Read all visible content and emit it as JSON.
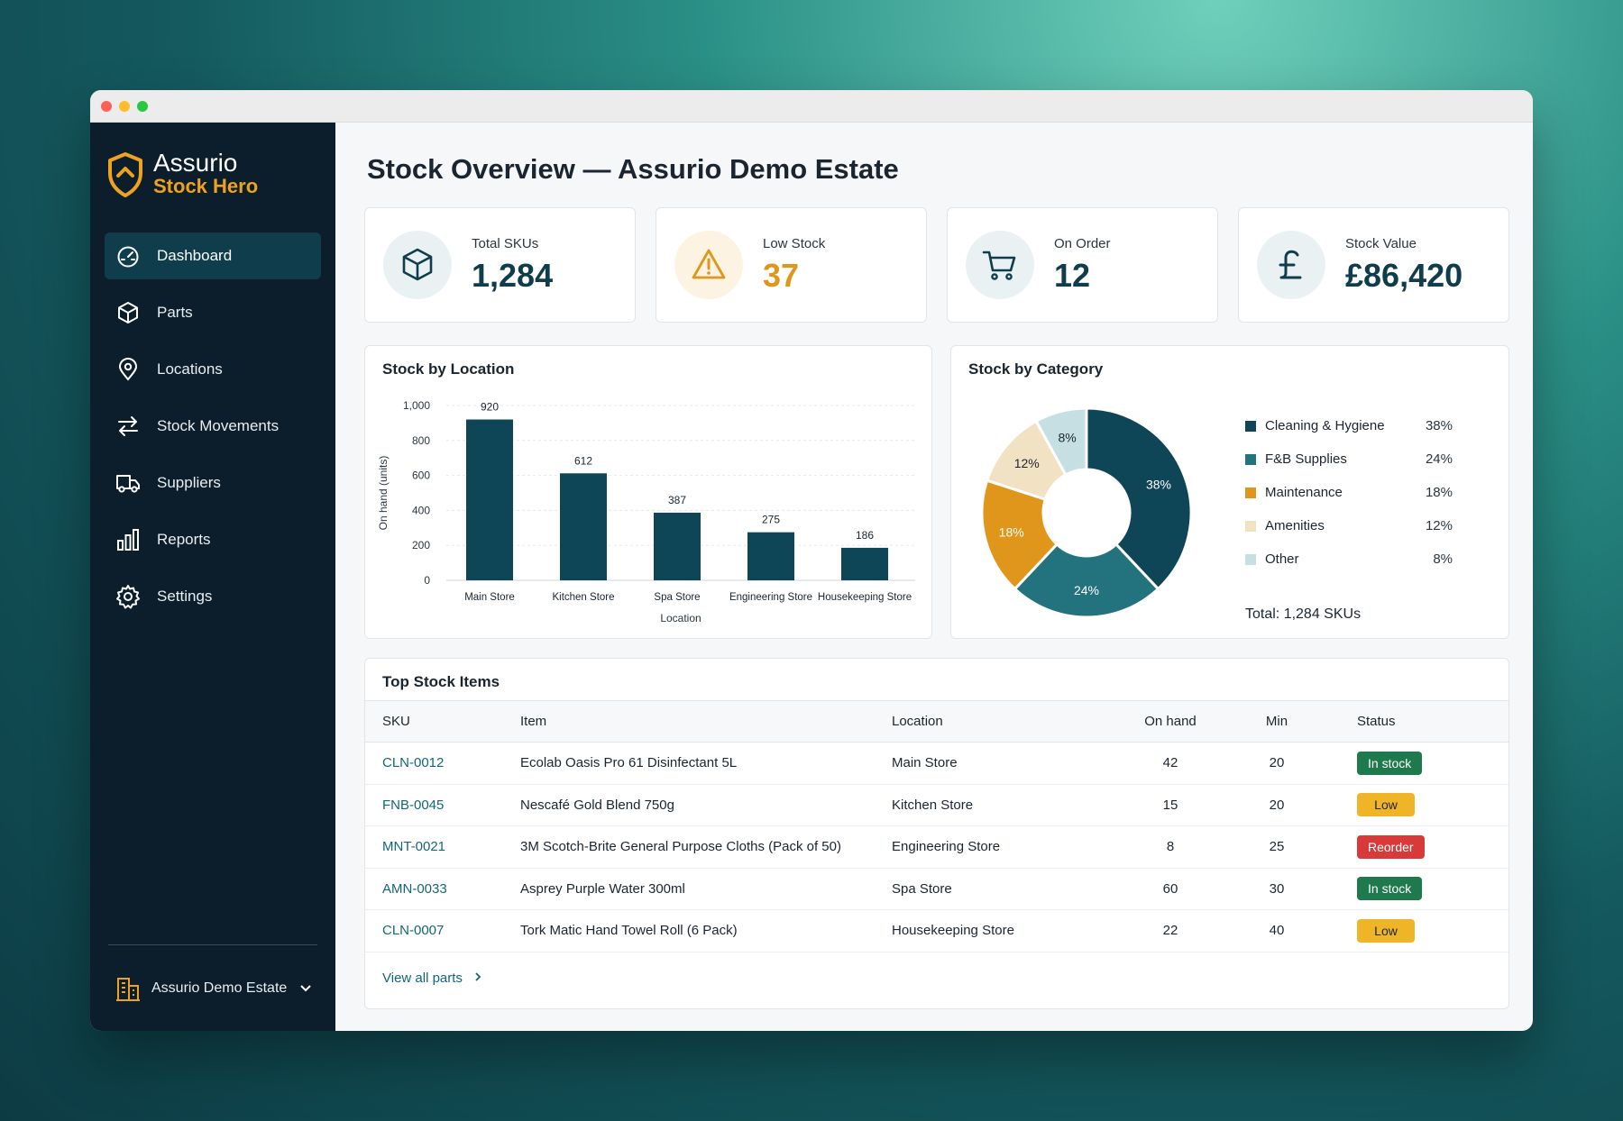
{
  "brand": {
    "name": "Assurio",
    "product": "Stock Hero"
  },
  "nav": [
    {
      "label": "Dashboard",
      "icon": "gauge-icon",
      "active": true
    },
    {
      "label": "Parts",
      "icon": "box-icon"
    },
    {
      "label": "Locations",
      "icon": "map-pin-icon"
    },
    {
      "label": "Stock Movements",
      "icon": "arrows-swap-icon"
    },
    {
      "label": "Suppliers",
      "icon": "truck-icon"
    },
    {
      "label": "Reports",
      "icon": "bar-chart-icon"
    },
    {
      "label": "Settings",
      "icon": "gear-icon"
    }
  ],
  "estate": {
    "name": "Assurio Demo Estate",
    "icon": "building-icon"
  },
  "page": {
    "title": "Stock Overview — Assurio Demo Estate"
  },
  "kpis": [
    {
      "label": "Total SKUs",
      "value": "1,284",
      "icon": "box-icon",
      "color": "#0f3d4c"
    },
    {
      "label": "Low Stock",
      "value": "37",
      "icon": "warning-icon",
      "color": "#e0961a"
    },
    {
      "label": "On Order",
      "value": "12",
      "icon": "cart-icon",
      "color": "#0f3d4c"
    },
    {
      "label": "Stock Value",
      "value": "£86,420",
      "icon": "pound-icon",
      "color": "#0f3d4c"
    }
  ],
  "location_chart": {
    "title": "Stock by Location"
  },
  "category_chart": {
    "title": "Stock by Category",
    "total": "Total: 1,284 SKUs"
  },
  "chart_data": [
    {
      "type": "bar",
      "title": "Stock by Location",
      "categories": [
        "Main Store",
        "Kitchen Store",
        "Spa Store",
        "Engineering Store",
        "Housekeeping Store"
      ],
      "values": [
        920,
        612,
        387,
        275,
        186
      ],
      "xlabel": "Location",
      "ylabel": "On hand (units)",
      "ylim": [
        0,
        1000
      ],
      "yticks": [
        "0",
        "200",
        "400",
        "600",
        "800",
        "1,000"
      ],
      "grid": true,
      "color": "#0f4657"
    },
    {
      "type": "pie",
      "title": "Stock by Category",
      "donut": true,
      "labels": [
        "Cleaning & Hygiene",
        "F&B Supplies",
        "Maintenance",
        "Amenities",
        "Other"
      ],
      "values": [
        38,
        24,
        18,
        12,
        8
      ],
      "display": [
        "38%",
        "24%",
        "18%",
        "12%",
        "8%"
      ],
      "colors": [
        "#0f4657",
        "#22737e",
        "#e0961a",
        "#f2e2c4",
        "#c6dfe3"
      ],
      "legend": "right"
    }
  ],
  "table": {
    "title": "Top Stock Items",
    "headers": {
      "sku": "SKU",
      "item": "Item",
      "location": "Location",
      "on_hand": "On hand",
      "min": "Min",
      "status": "Status"
    },
    "rows": [
      {
        "sku": "CLN-0012",
        "item": "Ecolab Oasis Pro 61 Disinfectant 5L",
        "location": "Main Store",
        "on_hand": "42",
        "min": "20",
        "status": "In stock",
        "status_type": "instock"
      },
      {
        "sku": "FNB-0045",
        "item": "Nescafé Gold Blend 750g",
        "location": "Kitchen Store",
        "on_hand": "15",
        "min": "20",
        "status": "Low",
        "status_type": "low"
      },
      {
        "sku": "MNT-0021",
        "item": "3M Scotch-Brite General Purpose Cloths (Pack of 50)",
        "location": "Engineering Store",
        "on_hand": "8",
        "min": "25",
        "status": "Reorder",
        "status_type": "reorder"
      },
      {
        "sku": "AMN-0033",
        "item": "Asprey Purple Water 300ml",
        "location": "Spa Store",
        "on_hand": "60",
        "min": "30",
        "status": "In stock",
        "status_type": "instock"
      },
      {
        "sku": "CLN-0007",
        "item": "Tork Matic Hand Towel Roll (6 Pack)",
        "location": "Housekeeping Store",
        "on_hand": "22",
        "min": "40",
        "status": "Low",
        "status_type": "low"
      }
    ],
    "view_all": "View all parts"
  }
}
